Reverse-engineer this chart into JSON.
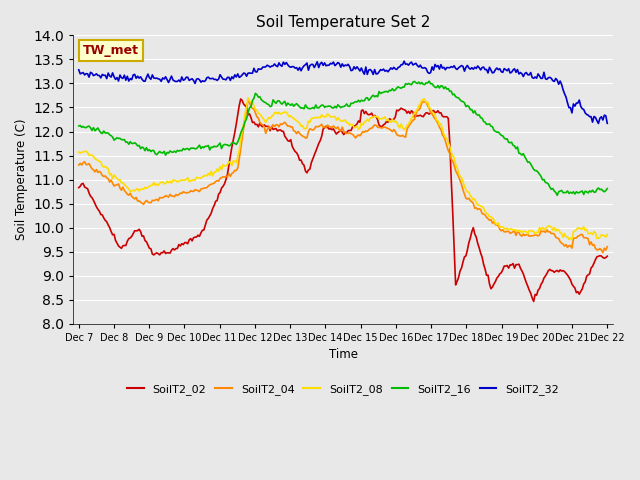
{
  "title": "Soil Temperature Set 2",
  "xlabel": "Time",
  "ylabel": "Soil Temperature (C)",
  "ylim": [
    8.0,
    14.0
  ],
  "yticks": [
    8.0,
    8.5,
    9.0,
    9.5,
    10.0,
    10.5,
    11.0,
    11.5,
    12.0,
    12.5,
    13.0,
    13.5,
    14.0
  ],
  "fig_bg_color": "#e8e8e8",
  "plot_bg_color": "#e8e8e8",
  "grid_color": "#ffffff",
  "series": [
    {
      "name": "SoilT2_02",
      "color": "#cc0000"
    },
    {
      "name": "SoilT2_04",
      "color": "#ff8800"
    },
    {
      "name": "SoilT2_08",
      "color": "#ffdd00"
    },
    {
      "name": "SoilT2_16",
      "color": "#00bb00"
    },
    {
      "name": "SoilT2_32",
      "color": "#0000cc"
    }
  ],
  "x_tick_labels": [
    "Dec 7",
    "Dec 8",
    "Dec 9",
    "Dec 10",
    "Dec 11",
    "Dec 12",
    "Dec 13",
    "Dec 14",
    "Dec 15",
    "Dec 16",
    "Dec 17",
    "Dec 18",
    "Dec 19",
    "Dec 20",
    "Dec 21",
    "Dec 22"
  ],
  "annotation": "TW_met",
  "annotation_color": "#990000",
  "annotation_bg": "#ffffcc",
  "annotation_edge": "#ccaa00"
}
